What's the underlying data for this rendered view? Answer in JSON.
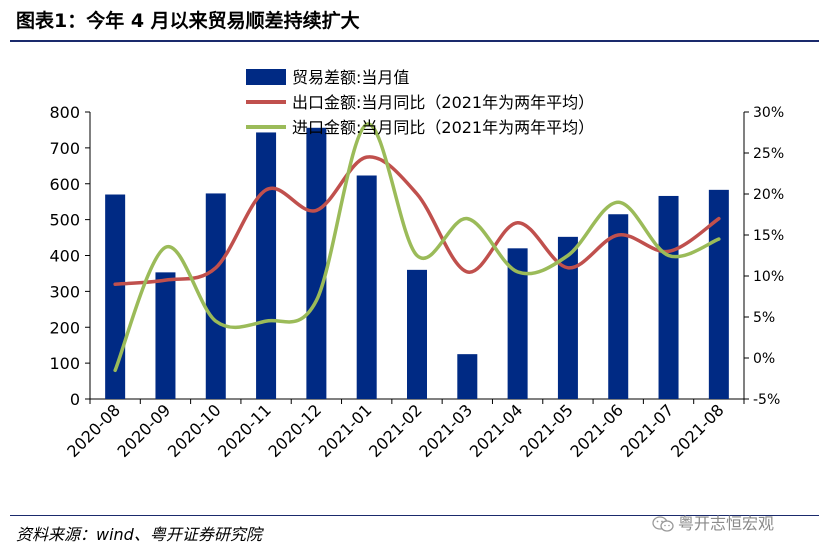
{
  "figure": {
    "title": "图表1：今年 4 月以来贸易顺差持续扩大",
    "source": "资料来源：wind、粤开证券研究院",
    "watermark": "粤开志恒宏观"
  },
  "colors": {
    "bar": "#002a84",
    "export_line": "#c0504d",
    "import_line": "#9bbb59",
    "rule": "#1a2a6c"
  },
  "chart_data": {
    "type": "bar",
    "categories": [
      "2020-08",
      "2020-09",
      "2020-10",
      "2020-11",
      "2020-12",
      "2021-01",
      "2021-02",
      "2021-03",
      "2021-04",
      "2021-05",
      "2021-06",
      "2021-07",
      "2021-08"
    ],
    "ylim": [
      0,
      800
    ],
    "y_ticks": [
      "0",
      "100",
      "200",
      "300",
      "400",
      "500",
      "600",
      "700",
      "800"
    ],
    "y2lim": [
      -5,
      30
    ],
    "y2_ticks": [
      "-5%",
      "0%",
      "5%",
      "10%",
      "15%",
      "20%",
      "25%",
      "30%"
    ],
    "grid": false,
    "legend_position": "top-center",
    "series": [
      {
        "name": "贸易差额:当月值",
        "type": "bar",
        "axis": "left",
        "values": [
          570,
          353,
          573,
          743,
          756,
          623,
          360,
          125,
          420,
          452,
          515,
          566,
          583
        ]
      },
      {
        "name": "出口金额:当月同比（2021年为两年平均）",
        "type": "line",
        "axis": "right",
        "values": [
          9.0,
          9.5,
          11.0,
          20.5,
          18.0,
          24.5,
          20.0,
          10.5,
          16.5,
          11.0,
          15.0,
          13.0,
          17.0
        ]
      },
      {
        "name": "进口金额:当月同比（2021年为两年平均）",
        "type": "line",
        "axis": "right",
        "values": [
          -1.5,
          13.5,
          4.5,
          4.5,
          7.0,
          28.5,
          12.5,
          17.0,
          10.5,
          12.5,
          19.0,
          12.5,
          14.5
        ]
      }
    ]
  }
}
